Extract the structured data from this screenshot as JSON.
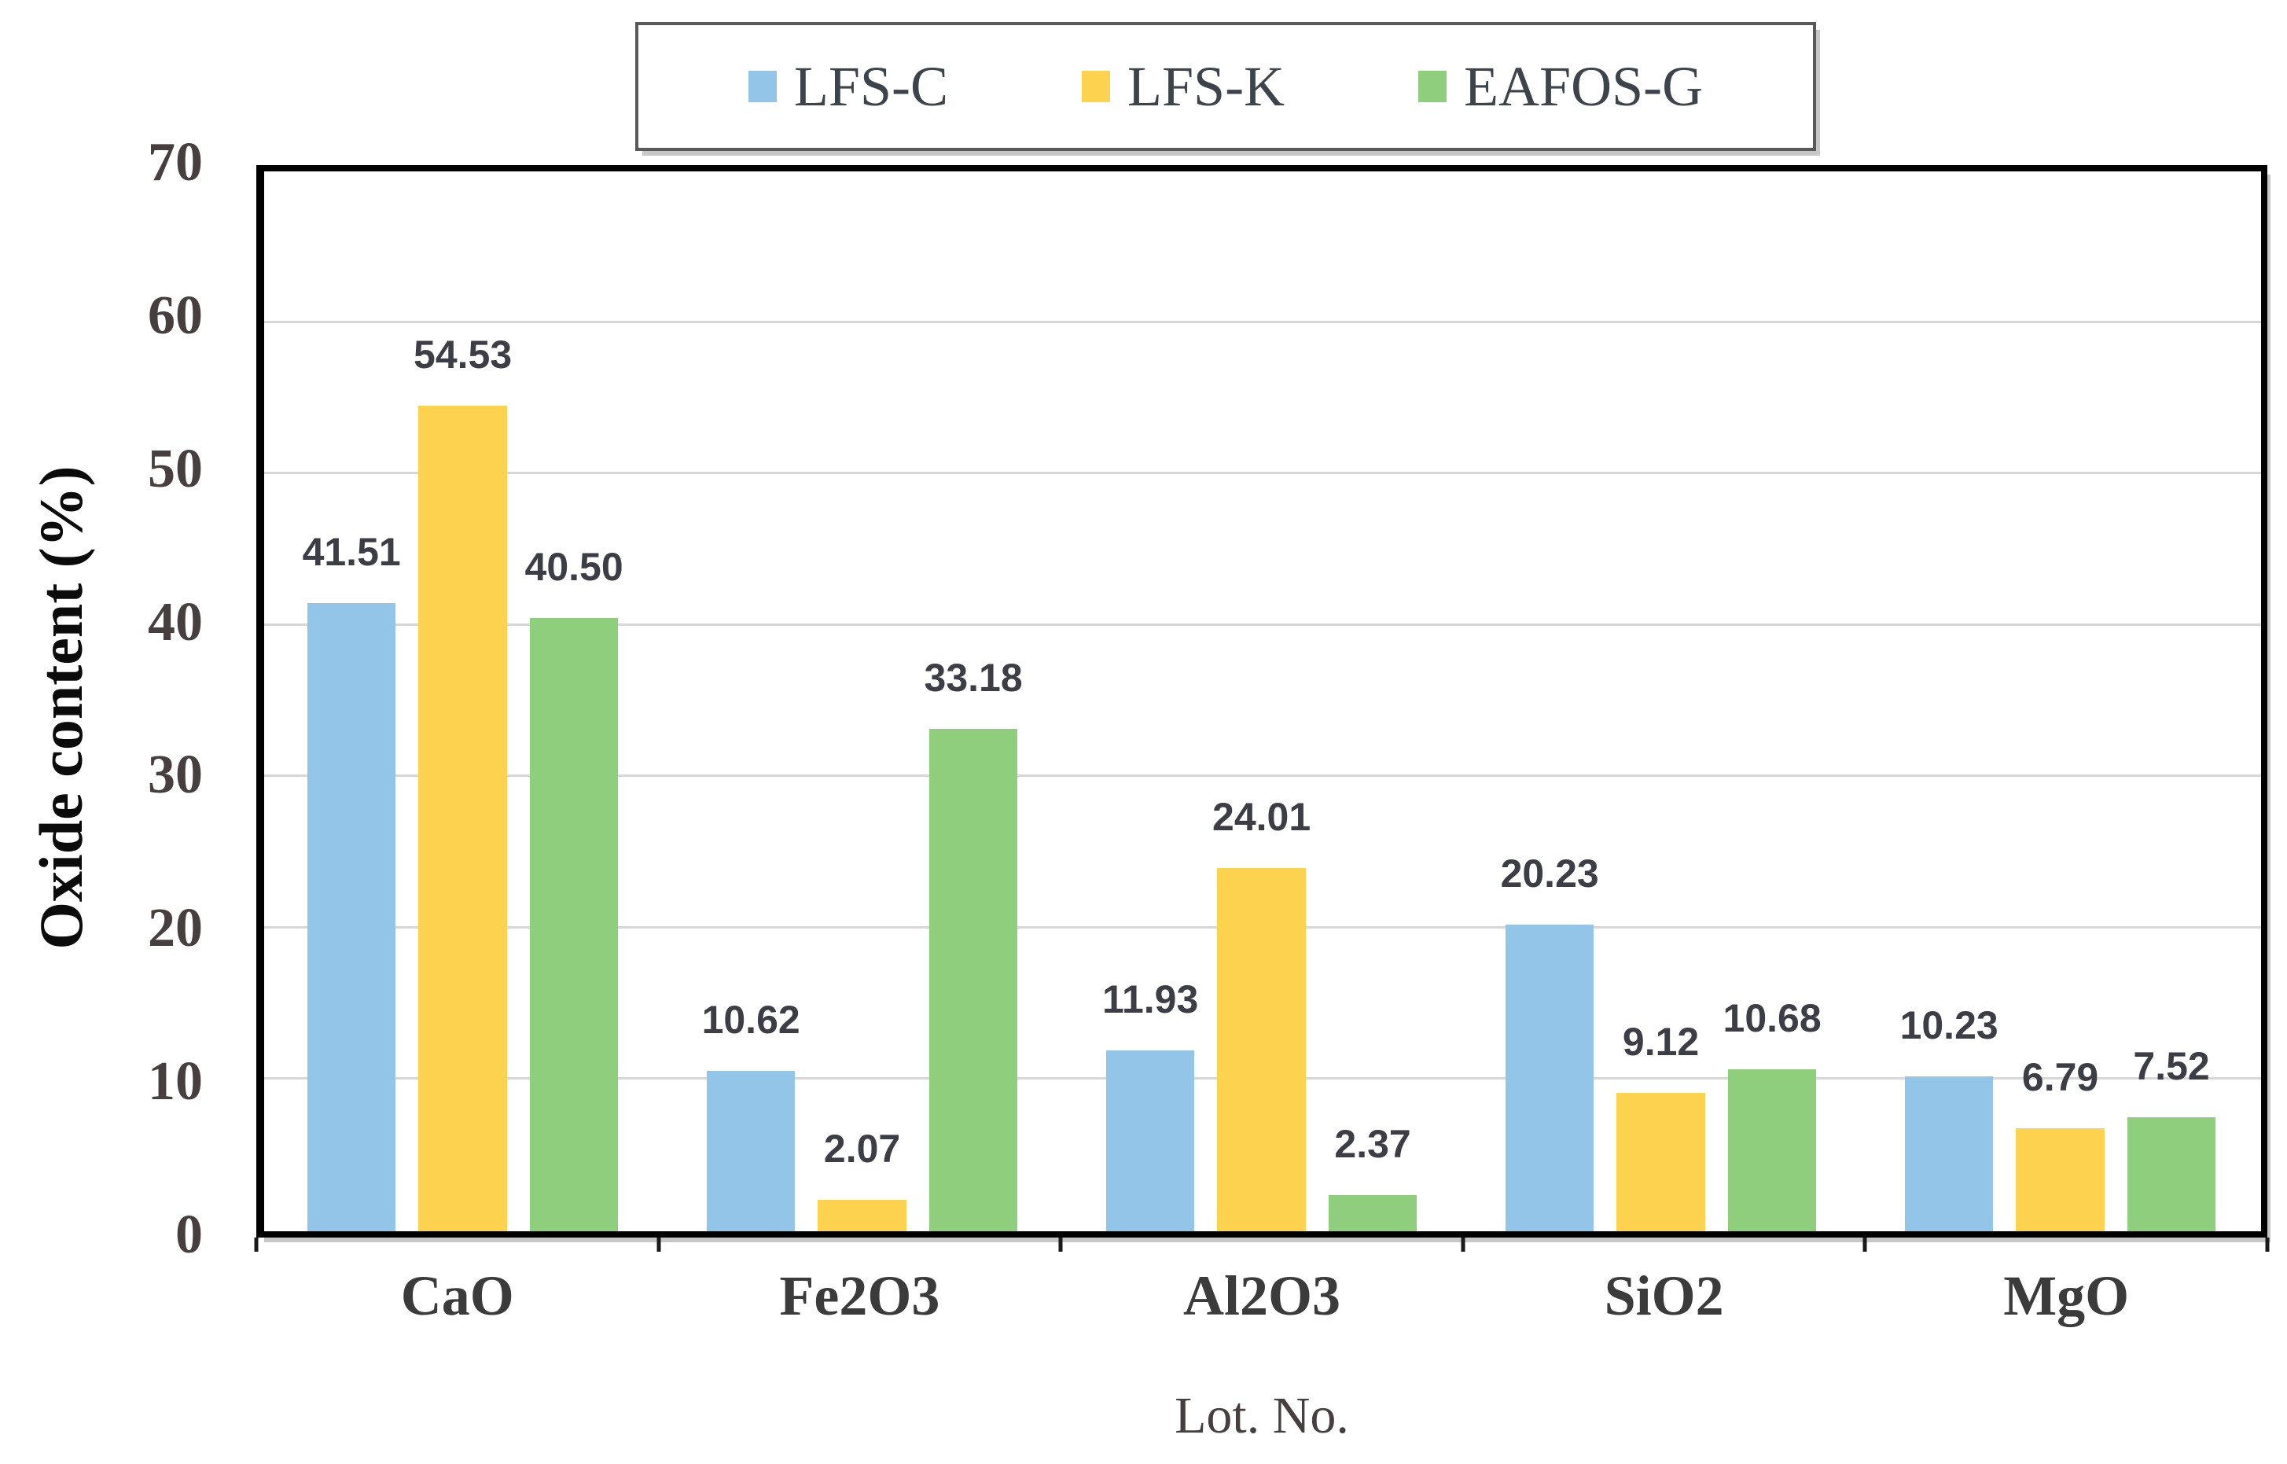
{
  "chart_data": {
    "type": "bar",
    "title": "",
    "xlabel": "Lot. No.",
    "ylabel": "Oxide content (%)",
    "categories": [
      "CaO",
      "Fe2O3",
      "Al2O3",
      "SiO2",
      "MgO"
    ],
    "series": [
      {
        "name": "LFS-C",
        "color": "#92C5E8",
        "values": [
          41.51,
          10.62,
          11.93,
          20.23,
          10.23
        ]
      },
      {
        "name": "LFS-K",
        "color": "#FCD24F",
        "values": [
          54.53,
          2.07,
          24.01,
          9.12,
          6.79
        ]
      },
      {
        "name": "EAFOS-G",
        "color": "#8FCE7D",
        "values": [
          40.5,
          33.18,
          2.37,
          10.68,
          7.52
        ]
      }
    ],
    "value_labels": [
      [
        "41.51",
        "10.62",
        "11.93",
        "20.23",
        "10.23"
      ],
      [
        "54.53",
        "2.07",
        "24.01",
        "9.12",
        "6.79"
      ],
      [
        "40.50",
        "33.18",
        "2.37",
        "10.68",
        "7.52"
      ]
    ],
    "ylim": [
      0,
      70
    ],
    "yticks": [
      0,
      10,
      20,
      30,
      40,
      50,
      60,
      70
    ],
    "grid": "horizontal",
    "gridline_color": "#d7d7d7",
    "plot_border_color": "#000000",
    "legend_position": "top",
    "legend_border_color": "#595959",
    "label_text_color": "#3d3d46",
    "axis_text_color": "#473f3f"
  }
}
